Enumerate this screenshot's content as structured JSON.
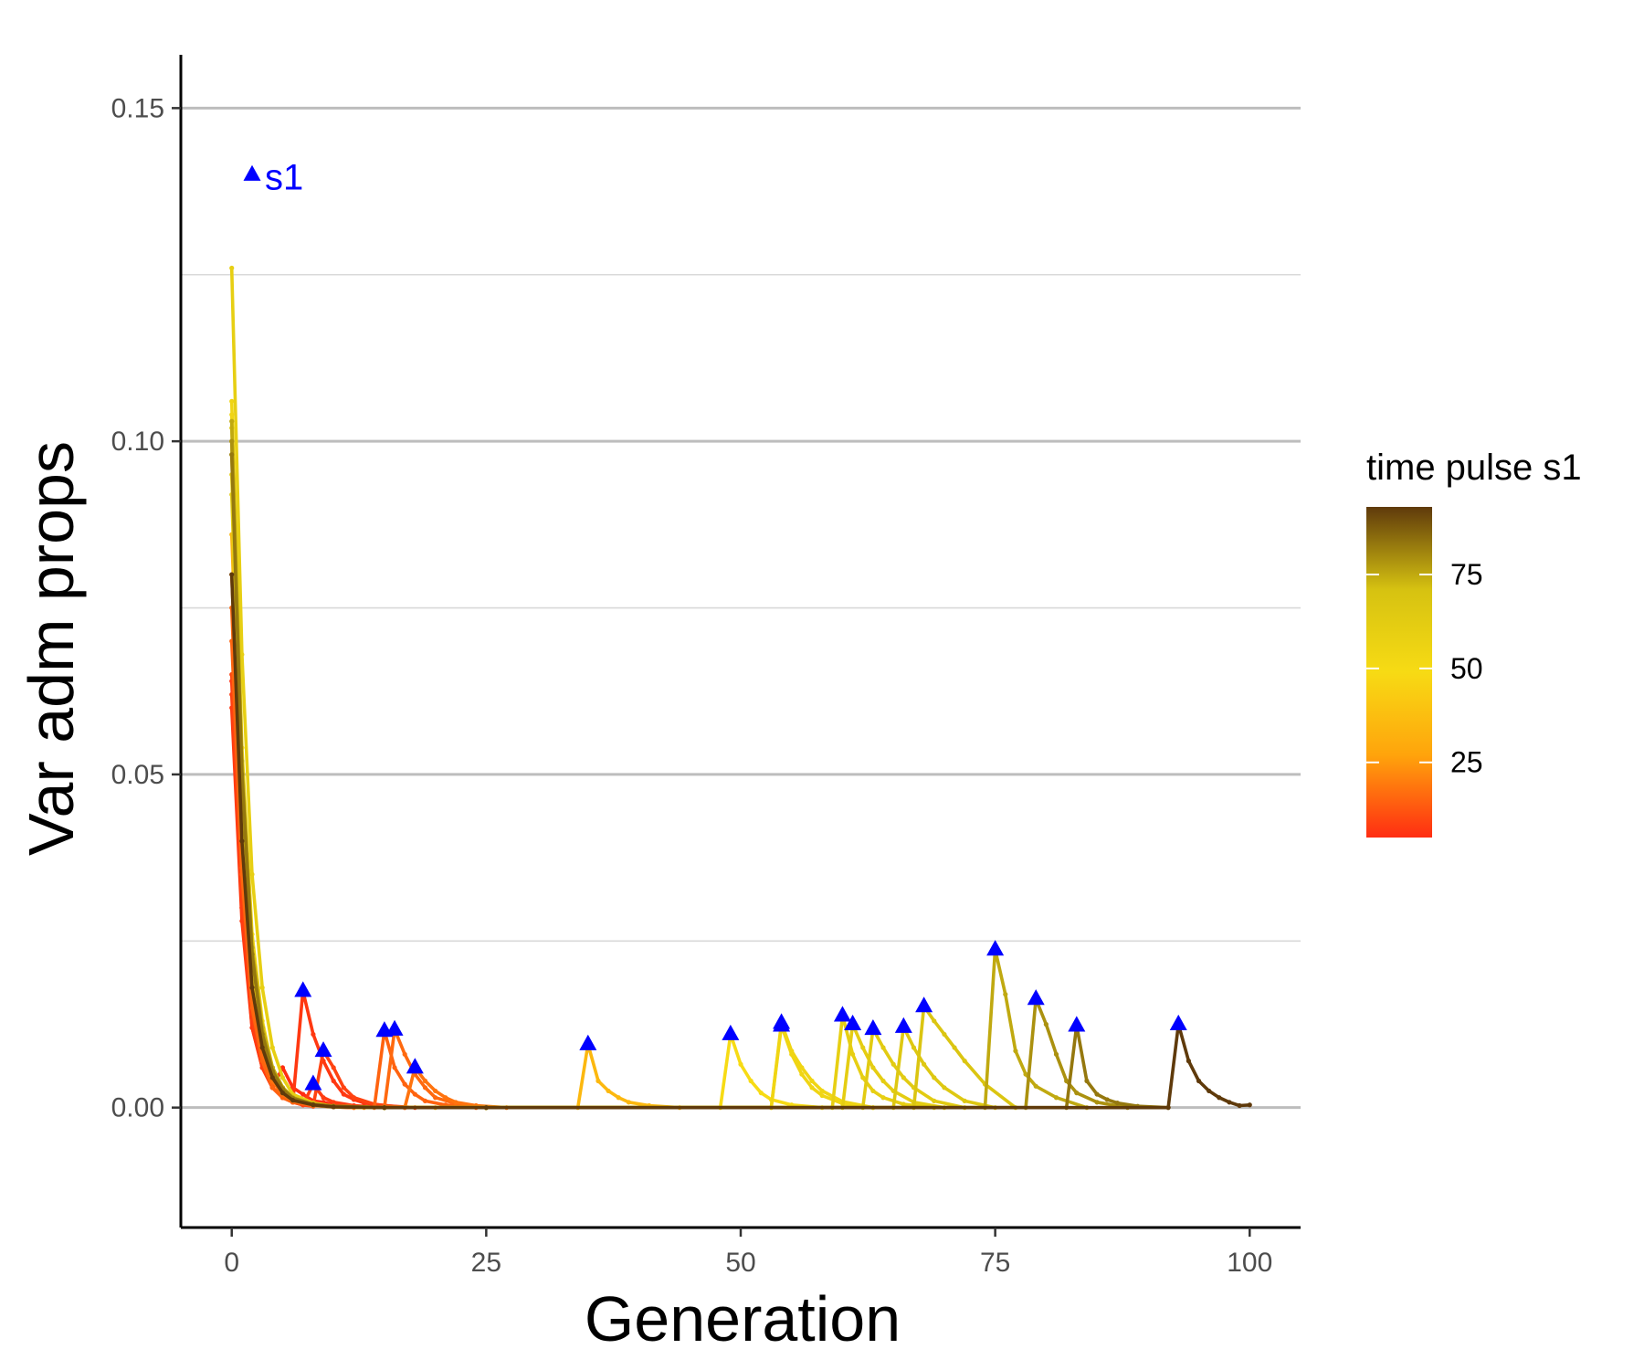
{
  "chart_data": {
    "type": "line",
    "title": "",
    "xlabel": "Generation",
    "ylabel": "Var adm props",
    "xlim": [
      -5,
      105
    ],
    "ylim": [
      -0.018,
      0.158
    ],
    "x_ticks": [
      0,
      25,
      50,
      75,
      100
    ],
    "x_tick_labels": [
      "0",
      "25",
      "50",
      "75",
      "100"
    ],
    "y_ticks": [
      0.0,
      0.05,
      0.1,
      0.15
    ],
    "y_tick_labels": [
      "0.00",
      "0.05",
      "0.10",
      "0.15"
    ],
    "y_minor_ticks": [
      0.025,
      0.075,
      0.125
    ],
    "grid": "horizontal",
    "legend": {
      "title": "time pulse s1",
      "position": "right",
      "ticks": [
        25,
        50,
        75
      ],
      "tick_labels": [
        "25",
        "50",
        "75"
      ],
      "range": [
        5,
        93
      ],
      "colors": [
        "#ff2d12",
        "#ffa40c",
        "#f7db14",
        "#d6c211",
        "#5f3a0b"
      ]
    },
    "marker_color": "#0000ff",
    "marker_legend_label": "s1",
    "marker_legend_point": {
      "x": 2,
      "y": 0.14
    },
    "series": [
      {
        "pulse": 5,
        "initial": 0.064,
        "x": [
          0,
          1,
          2,
          3,
          4,
          5,
          6,
          7,
          8,
          9,
          10,
          12,
          15
        ],
        "values": [
          0.064,
          0.03,
          0.012,
          0.006,
          0.003,
          0.006,
          0.003,
          0.002,
          0.001,
          0.0008,
          0.0004,
          0.0002,
          0.0
        ]
      },
      {
        "pulse": 7,
        "initial": 0.06,
        "x": [
          0,
          1,
          2,
          3,
          4,
          5,
          6,
          7,
          8,
          9,
          10,
          11,
          12,
          13,
          15,
          18
        ],
        "values": [
          0.06,
          0.028,
          0.012,
          0.006,
          0.003,
          0.0015,
          0.0008,
          0.0175,
          0.011,
          0.007,
          0.004,
          0.002,
          0.0012,
          0.0007,
          0.0003,
          0.0
        ]
      },
      {
        "pulse": 8,
        "initial": 0.062,
        "x": [
          0,
          1,
          2,
          3,
          4,
          5,
          6,
          7,
          8,
          9,
          10,
          12,
          15
        ],
        "values": [
          0.062,
          0.03,
          0.013,
          0.006,
          0.003,
          0.0015,
          0.0008,
          0.0004,
          0.0035,
          0.0015,
          0.0008,
          0.0003,
          0.0
        ]
      },
      {
        "pulse": 9,
        "initial": 0.065,
        "x": [
          0,
          1,
          2,
          3,
          4,
          5,
          6,
          7,
          8,
          9,
          10,
          11,
          12,
          14,
          17
        ],
        "values": [
          0.065,
          0.033,
          0.014,
          0.007,
          0.003,
          0.0015,
          0.0008,
          0.0004,
          0.0002,
          0.0085,
          0.006,
          0.003,
          0.0015,
          0.0005,
          0.0
        ]
      },
      {
        "pulse": 15,
        "initial": 0.07,
        "x": [
          0,
          1,
          2,
          3,
          4,
          5,
          6,
          8,
          10,
          12,
          14,
          15,
          16,
          17,
          18,
          19,
          21,
          24
        ],
        "values": [
          0.07,
          0.035,
          0.015,
          0.007,
          0.003,
          0.0015,
          0.0008,
          0.0003,
          0.0001,
          0.0,
          0.0,
          0.0115,
          0.006,
          0.0035,
          0.002,
          0.001,
          0.0004,
          0.0
        ]
      },
      {
        "pulse": 16,
        "initial": 0.075,
        "x": [
          0,
          1,
          2,
          3,
          4,
          5,
          6,
          8,
          10,
          12,
          15,
          16,
          17,
          18,
          19,
          20,
          22,
          25
        ],
        "values": [
          0.075,
          0.036,
          0.016,
          0.008,
          0.004,
          0.002,
          0.001,
          0.0004,
          0.0001,
          0.0,
          0.0,
          0.0117,
          0.008,
          0.005,
          0.003,
          0.0015,
          0.0006,
          0.0
        ]
      },
      {
        "pulse": 18,
        "initial": 0.08,
        "x": [
          0,
          1,
          2,
          3,
          4,
          5,
          6,
          8,
          10,
          13,
          17,
          18,
          19,
          20,
          21,
          22,
          24,
          27
        ],
        "values": [
          0.08,
          0.04,
          0.018,
          0.009,
          0.004,
          0.002,
          0.001,
          0.0004,
          0.0001,
          0.0,
          0.0,
          0.006,
          0.004,
          0.0025,
          0.0015,
          0.0008,
          0.0003,
          0.0
        ]
      },
      {
        "pulse": 35,
        "initial": 0.086,
        "x": [
          0,
          1,
          2,
          3,
          4,
          5,
          6,
          8,
          10,
          15,
          20,
          34,
          35,
          36,
          37,
          38,
          39,
          41,
          44
        ],
        "values": [
          0.086,
          0.045,
          0.02,
          0.01,
          0.005,
          0.0025,
          0.0012,
          0.0004,
          0.0001,
          0.0,
          0.0,
          0.0,
          0.0095,
          0.004,
          0.0025,
          0.0015,
          0.0008,
          0.0003,
          0.0
        ]
      },
      {
        "pulse": 49,
        "initial": 0.1,
        "x": [
          0,
          1,
          2,
          3,
          4,
          5,
          6,
          8,
          10,
          15,
          25,
          48,
          49,
          50,
          51,
          52,
          53,
          55,
          58
        ],
        "values": [
          0.1,
          0.05,
          0.024,
          0.012,
          0.006,
          0.003,
          0.0015,
          0.0005,
          0.0002,
          0.0,
          0.0,
          0.0,
          0.011,
          0.0065,
          0.004,
          0.0022,
          0.0012,
          0.0004,
          0.0
        ]
      },
      {
        "pulse": 54,
        "initial": 0.104,
        "x": [
          0,
          1,
          2,
          3,
          4,
          5,
          6,
          8,
          10,
          15,
          25,
          53,
          54,
          55,
          56,
          57,
          58,
          60,
          63
        ],
        "values": [
          0.104,
          0.052,
          0.025,
          0.012,
          0.006,
          0.003,
          0.0015,
          0.0005,
          0.0002,
          0.0,
          0.0,
          0.0,
          0.0123,
          0.008,
          0.005,
          0.003,
          0.0018,
          0.0006,
          0.0
        ]
      },
      {
        "pulse": 54,
        "initial": 0.106,
        "x": [
          0,
          1,
          2,
          3,
          4,
          5,
          6,
          8,
          10,
          15,
          25,
          53,
          54,
          55,
          56,
          57,
          58,
          60,
          63
        ],
        "values": [
          0.106,
          0.054,
          0.026,
          0.013,
          0.006,
          0.003,
          0.0015,
          0.0005,
          0.0002,
          0.0,
          0.0,
          0.0,
          0.0127,
          0.0085,
          0.006,
          0.004,
          0.0025,
          0.0009,
          0.0
        ]
      },
      {
        "pulse": 60,
        "initial": 0.126,
        "x": [
          0,
          1,
          2,
          3,
          4,
          5,
          6,
          8,
          10,
          15,
          25,
          59,
          60,
          61,
          62,
          63,
          64,
          66,
          69
        ],
        "values": [
          0.126,
          0.068,
          0.035,
          0.018,
          0.009,
          0.0045,
          0.002,
          0.0007,
          0.0002,
          0.0,
          0.0,
          0.0,
          0.0138,
          0.008,
          0.0045,
          0.0025,
          0.0015,
          0.0005,
          0.0
        ]
      },
      {
        "pulse": 61,
        "initial": 0.095,
        "x": [
          0,
          1,
          2,
          3,
          4,
          5,
          6,
          8,
          10,
          15,
          25,
          60,
          61,
          62,
          63,
          64,
          65,
          67,
          70
        ],
        "values": [
          0.095,
          0.048,
          0.022,
          0.011,
          0.005,
          0.0025,
          0.0012,
          0.0004,
          0.0001,
          0.0,
          0.0,
          0.0,
          0.0125,
          0.009,
          0.006,
          0.004,
          0.0025,
          0.0008,
          0.0
        ]
      },
      {
        "pulse": 63,
        "initial": 0.092,
        "x": [
          0,
          1,
          2,
          3,
          4,
          5,
          6,
          8,
          10,
          15,
          25,
          62,
          63,
          64,
          65,
          66,
          67,
          69,
          72
        ],
        "values": [
          0.092,
          0.047,
          0.022,
          0.011,
          0.005,
          0.0025,
          0.0012,
          0.0004,
          0.0001,
          0.0,
          0.0,
          0.0,
          0.0118,
          0.009,
          0.0065,
          0.0045,
          0.003,
          0.001,
          0.0
        ]
      },
      {
        "pulse": 66,
        "initial": 0.098,
        "x": [
          0,
          1,
          2,
          3,
          4,
          5,
          6,
          8,
          10,
          15,
          25,
          65,
          66,
          67,
          68,
          69,
          70,
          72,
          75
        ],
        "values": [
          0.098,
          0.05,
          0.023,
          0.011,
          0.0055,
          0.0028,
          0.0014,
          0.0005,
          0.0002,
          0.0,
          0.0,
          0.0,
          0.0121,
          0.009,
          0.0065,
          0.0045,
          0.003,
          0.001,
          0.0
        ]
      },
      {
        "pulse": 68,
        "initial": 0.102,
        "x": [
          0,
          1,
          2,
          3,
          4,
          5,
          6,
          8,
          10,
          15,
          25,
          67,
          68,
          69,
          70,
          71,
          72,
          74,
          77
        ],
        "values": [
          0.102,
          0.052,
          0.024,
          0.012,
          0.006,
          0.003,
          0.0015,
          0.0005,
          0.0002,
          0.0,
          0.0,
          0.0,
          0.0152,
          0.013,
          0.011,
          0.009,
          0.007,
          0.0035,
          0.0
        ]
      },
      {
        "pulse": 75,
        "initial": 0.103,
        "x": [
          0,
          1,
          2,
          3,
          4,
          5,
          6,
          8,
          10,
          15,
          25,
          74,
          75,
          76,
          77,
          78,
          79,
          81,
          84
        ],
        "values": [
          0.103,
          0.052,
          0.024,
          0.012,
          0.006,
          0.003,
          0.0015,
          0.0005,
          0.0002,
          0.0,
          0.0,
          0.0,
          0.0237,
          0.017,
          0.0085,
          0.005,
          0.0032,
          0.0015,
          0.0
        ]
      },
      {
        "pulse": 79,
        "initial": 0.1,
        "x": [
          0,
          1,
          2,
          3,
          4,
          5,
          6,
          8,
          10,
          15,
          25,
          78,
          79,
          80,
          81,
          82,
          83,
          85,
          88
        ],
        "values": [
          0.1,
          0.05,
          0.023,
          0.011,
          0.0055,
          0.0028,
          0.0014,
          0.0005,
          0.0002,
          0.0,
          0.0,
          0.0,
          0.0163,
          0.0125,
          0.008,
          0.004,
          0.0022,
          0.0008,
          0.0
        ]
      },
      {
        "pulse": 83,
        "initial": 0.098,
        "x": [
          0,
          1,
          2,
          3,
          4,
          5,
          6,
          8,
          10,
          15,
          25,
          82,
          83,
          84,
          85,
          86,
          87,
          89,
          92
        ],
        "values": [
          0.098,
          0.05,
          0.023,
          0.011,
          0.0055,
          0.0028,
          0.0014,
          0.0005,
          0.0002,
          0.0,
          0.0,
          0.0,
          0.0123,
          0.004,
          0.002,
          0.0012,
          0.0007,
          0.0002,
          0.0
        ]
      },
      {
        "pulse": 93,
        "initial": 0.08,
        "x": [
          0,
          1,
          2,
          3,
          4,
          5,
          6,
          8,
          10,
          15,
          25,
          92,
          93,
          94,
          95,
          96,
          97,
          98,
          99,
          100
        ],
        "values": [
          0.08,
          0.04,
          0.018,
          0.009,
          0.0045,
          0.0022,
          0.0011,
          0.0004,
          0.0001,
          0.0,
          0.0,
          0.0,
          0.0125,
          0.007,
          0.004,
          0.0025,
          0.0015,
          0.0008,
          0.0003,
          0.0004
        ]
      }
    ],
    "markers": [
      {
        "x": 7,
        "y": 0.0175
      },
      {
        "x": 8,
        "y": 0.0035
      },
      {
        "x": 9,
        "y": 0.0085
      },
      {
        "x": 15,
        "y": 0.0115
      },
      {
        "x": 16,
        "y": 0.0117
      },
      {
        "x": 18,
        "y": 0.006
      },
      {
        "x": 35,
        "y": 0.0095
      },
      {
        "x": 49,
        "y": 0.011
      },
      {
        "x": 54,
        "y": 0.0123
      },
      {
        "x": 54,
        "y": 0.0127
      },
      {
        "x": 60,
        "y": 0.0138
      },
      {
        "x": 61,
        "y": 0.0125
      },
      {
        "x": 63,
        "y": 0.0118
      },
      {
        "x": 66,
        "y": 0.0121
      },
      {
        "x": 68,
        "y": 0.0152
      },
      {
        "x": 75,
        "y": 0.0237
      },
      {
        "x": 79,
        "y": 0.0163
      },
      {
        "x": 83,
        "y": 0.0123
      },
      {
        "x": 93,
        "y": 0.0125
      }
    ]
  }
}
